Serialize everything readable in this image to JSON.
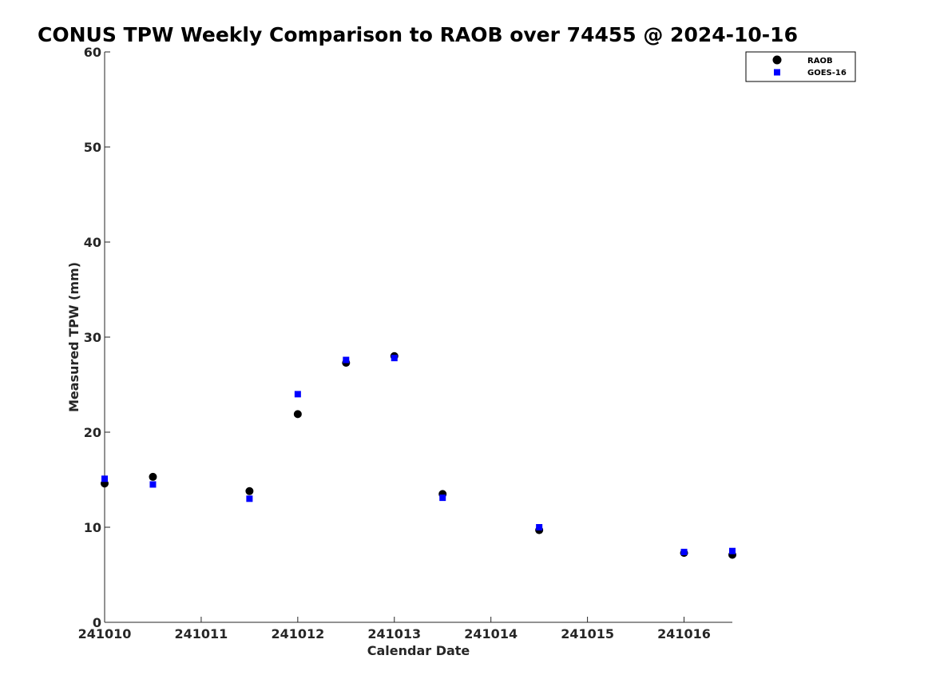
{
  "chart_data": {
    "type": "scatter",
    "title": "CONUS TPW Weekly Comparison to RAOB over 74455 @ 2024-10-16",
    "xlabel": "Calendar Date",
    "ylabel": "Measured TPW (mm)",
    "xlim": [
      241010,
      241016.5
    ],
    "ylim": [
      0,
      60
    ],
    "xticks": [
      241010,
      241011,
      241012,
      241013,
      241014,
      241015,
      241016
    ],
    "xtick_labels": [
      "241010",
      "241011",
      "241012",
      "241013",
      "241014",
      "241015",
      "241016"
    ],
    "yticks": [
      0,
      10,
      20,
      30,
      40,
      50,
      60
    ],
    "ytick_labels": [
      "0",
      "10",
      "20",
      "30",
      "40",
      "50",
      "60"
    ],
    "grid": false,
    "legend_position": "top-right",
    "series": [
      {
        "name": "RAOB",
        "marker": "circle",
        "color": "#000000",
        "x": [
          241010.0,
          241010.5,
          241011.5,
          241012.0,
          241012.5,
          241013.0,
          241013.5,
          241014.5,
          241016.0,
          241016.5
        ],
        "y": [
          14.6,
          15.3,
          13.8,
          21.9,
          27.3,
          28.0,
          13.5,
          9.7,
          7.3,
          7.1
        ]
      },
      {
        "name": "GOES-16",
        "marker": "square",
        "color": "#0000ff",
        "x": [
          241010.0,
          241010.5,
          241011.5,
          241012.0,
          241012.5,
          241013.0,
          241013.5,
          241014.5,
          241016.0,
          241016.5
        ],
        "y": [
          15.1,
          14.5,
          13.0,
          24.0,
          27.6,
          27.8,
          13.1,
          10.0,
          7.4,
          7.5
        ]
      }
    ]
  }
}
